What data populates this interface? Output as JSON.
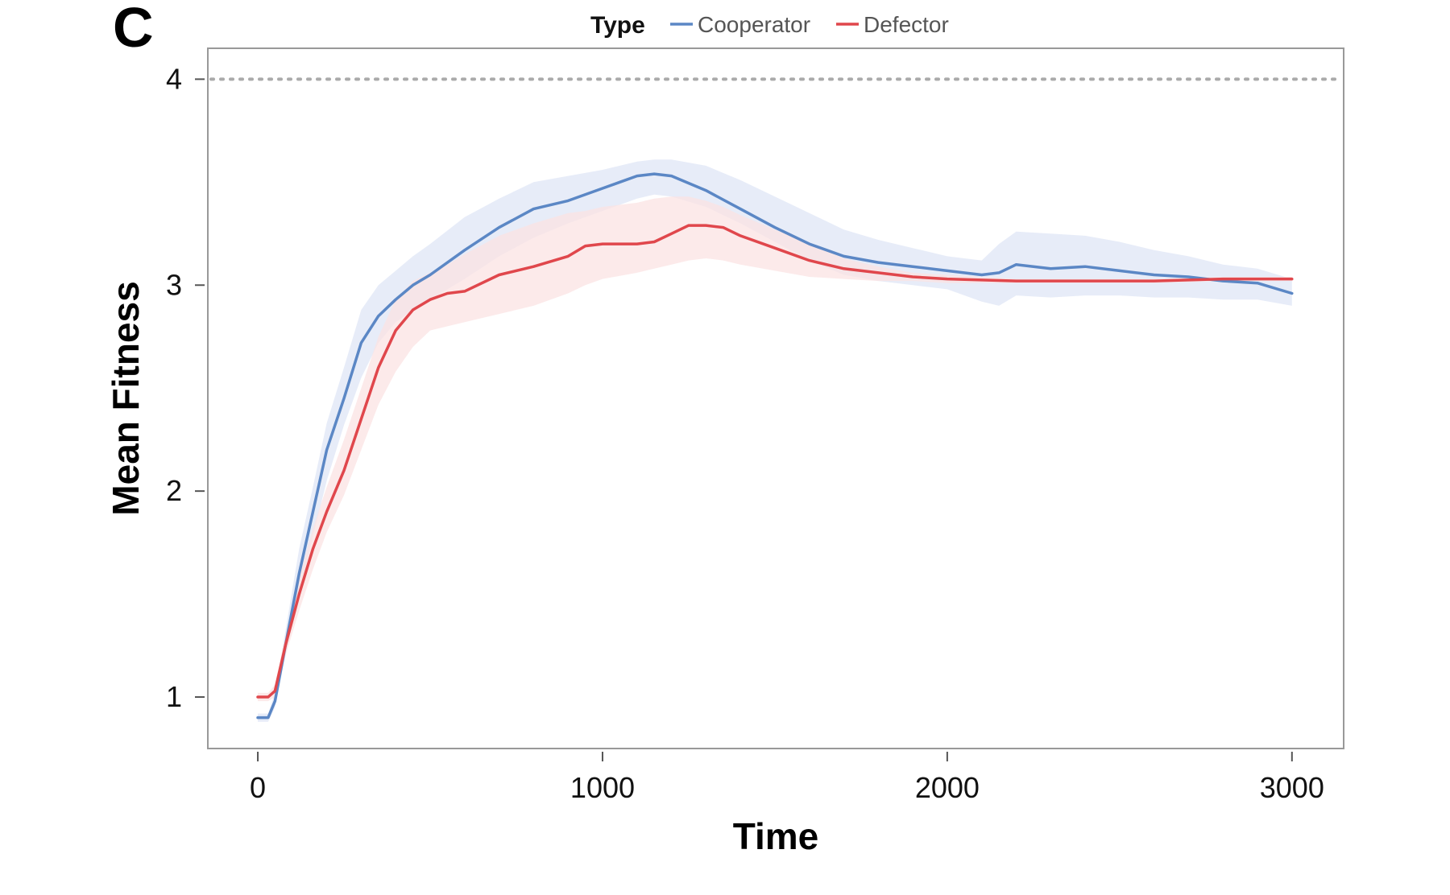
{
  "panel_label": "C",
  "legend": {
    "title": "Type",
    "items": [
      {
        "label": "Cooperator",
        "color": "#5b87c5"
      },
      {
        "label": "Defector",
        "color": "#e0474c"
      }
    ],
    "placement": "top-center"
  },
  "chart_data": {
    "type": "line",
    "title": "",
    "xlabel": "Time",
    "ylabel": "Mean Fitness",
    "xlim": [
      -145,
      3150
    ],
    "ylim": [
      0.75,
      4.15
    ],
    "x_ticks": [
      0,
      1000,
      2000,
      3000
    ],
    "x_tick_labels": [
      "0",
      "1000",
      "2000",
      "3000"
    ],
    "y_ticks": [
      1,
      2,
      3,
      4
    ],
    "y_tick_labels": [
      "1",
      "2",
      "3",
      "4"
    ],
    "grid": false,
    "reference_line": {
      "y": 4,
      "style": "dotted",
      "color": "#aaaaaa"
    },
    "series": [
      {
        "name": "Cooperator",
        "color": "#5b87c5",
        "band_color": "#dfe6f6",
        "x": [
          0,
          30,
          50,
          80,
          120,
          160,
          200,
          250,
          300,
          350,
          400,
          450,
          500,
          600,
          700,
          800,
          900,
          1000,
          1050,
          1100,
          1150,
          1200,
          1300,
          1400,
          1500,
          1600,
          1700,
          1800,
          1900,
          2000,
          2100,
          2150,
          2200,
          2300,
          2400,
          2500,
          2600,
          2700,
          2800,
          2900,
          3000
        ],
        "y": [
          0.9,
          0.9,
          0.98,
          1.25,
          1.6,
          1.9,
          2.2,
          2.45,
          2.72,
          2.85,
          2.93,
          3.0,
          3.05,
          3.17,
          3.28,
          3.37,
          3.41,
          3.47,
          3.5,
          3.53,
          3.54,
          3.53,
          3.46,
          3.37,
          3.28,
          3.2,
          3.14,
          3.11,
          3.09,
          3.07,
          3.05,
          3.06,
          3.1,
          3.08,
          3.09,
          3.07,
          3.05,
          3.04,
          3.02,
          3.01,
          2.96
        ],
        "band_lower": [
          0.88,
          0.88,
          0.95,
          1.2,
          1.5,
          1.78,
          2.05,
          2.32,
          2.55,
          2.72,
          2.82,
          2.88,
          2.93,
          3.03,
          3.14,
          3.23,
          3.3,
          3.36,
          3.39,
          3.42,
          3.44,
          3.43,
          3.38,
          3.3,
          3.21,
          3.12,
          3.05,
          3.02,
          3.0,
          2.98,
          2.92,
          2.9,
          2.95,
          2.94,
          2.95,
          2.95,
          2.94,
          2.94,
          2.93,
          2.93,
          2.9
        ],
        "band_upper": [
          0.92,
          0.92,
          1.02,
          1.32,
          1.72,
          2.02,
          2.33,
          2.6,
          2.88,
          3.0,
          3.07,
          3.14,
          3.2,
          3.33,
          3.42,
          3.5,
          3.53,
          3.56,
          3.58,
          3.6,
          3.61,
          3.61,
          3.58,
          3.51,
          3.43,
          3.35,
          3.27,
          3.22,
          3.18,
          3.14,
          3.12,
          3.2,
          3.26,
          3.25,
          3.24,
          3.21,
          3.17,
          3.14,
          3.1,
          3.08,
          3.03
        ]
      },
      {
        "name": "Defector",
        "color": "#e0474c",
        "band_color": "#fbe3e3",
        "x": [
          0,
          30,
          50,
          80,
          120,
          160,
          200,
          250,
          300,
          350,
          400,
          450,
          500,
          550,
          600,
          700,
          800,
          900,
          950,
          1000,
          1100,
          1150,
          1200,
          1250,
          1300,
          1350,
          1400,
          1500,
          1600,
          1700,
          1800,
          1900,
          2000,
          2200,
          2400,
          2600,
          2800,
          3000
        ],
        "y": [
          1.0,
          1.0,
          1.03,
          1.25,
          1.5,
          1.72,
          1.9,
          2.1,
          2.35,
          2.6,
          2.78,
          2.88,
          2.93,
          2.96,
          2.97,
          3.05,
          3.09,
          3.14,
          3.19,
          3.2,
          3.2,
          3.21,
          3.25,
          3.29,
          3.29,
          3.28,
          3.24,
          3.18,
          3.12,
          3.08,
          3.06,
          3.04,
          3.03,
          3.02,
          3.02,
          3.02,
          3.03,
          3.03
        ],
        "band_lower": [
          0.98,
          0.98,
          1.0,
          1.2,
          1.42,
          1.62,
          1.8,
          1.98,
          2.2,
          2.42,
          2.58,
          2.7,
          2.78,
          2.8,
          2.82,
          2.86,
          2.9,
          2.96,
          3.0,
          3.03,
          3.06,
          3.08,
          3.1,
          3.12,
          3.13,
          3.12,
          3.1,
          3.07,
          3.04,
          3.03,
          3.02,
          3.02,
          3.01,
          3.01,
          3.01,
          3.01,
          3.02,
          3.02
        ],
        "band_upper": [
          1.02,
          1.02,
          1.06,
          1.3,
          1.58,
          1.82,
          2.02,
          2.25,
          2.5,
          2.75,
          2.93,
          3.02,
          3.06,
          3.1,
          3.15,
          3.24,
          3.3,
          3.35,
          3.36,
          3.38,
          3.4,
          3.42,
          3.43,
          3.43,
          3.41,
          3.38,
          3.34,
          3.27,
          3.2,
          3.13,
          3.09,
          3.06,
          3.05,
          3.03,
          3.03,
          3.03,
          3.04,
          3.04
        ]
      }
    ]
  }
}
